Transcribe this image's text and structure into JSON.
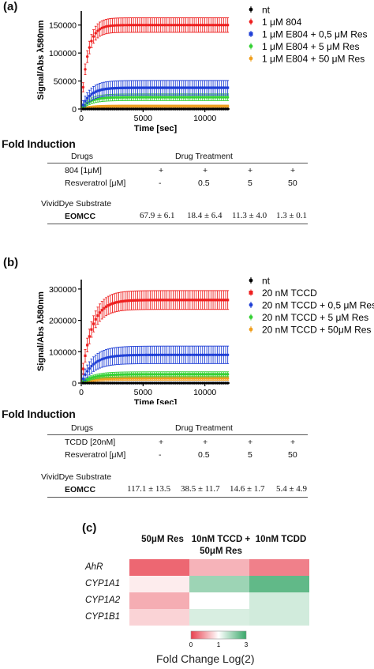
{
  "panel_a": {
    "label": "(a)",
    "chart_data": {
      "type": "line",
      "xlabel": "Time [sec]",
      "ylabel": "Signal/Abs λ580nm",
      "xlim": [
        0,
        12000
      ],
      "ylim": [
        0,
        175000
      ],
      "xticks": [
        "0",
        "5000",
        "10000"
      ],
      "yticks": [
        "0",
        "50000",
        "100000",
        "150000"
      ],
      "legend_position": "right",
      "series": [
        {
          "name": "nt",
          "color": "#000000",
          "marker": "dot",
          "plateau": 0,
          "t_half": 1,
          "err": 0
        },
        {
          "name": "1 μM 804",
          "color": "#ee2020",
          "marker": "dot",
          "plateau": 150000,
          "t_half": 500,
          "err": 13000
        },
        {
          "name": "1 μM E804 + 0,5 μM Res",
          "color": "#1f3fd6",
          "marker": "square",
          "plateau": 38000,
          "t_half": 700,
          "err": 13000
        },
        {
          "name": "1 μM E804 + 5 μM Res",
          "color": "#35d035",
          "marker": "dot",
          "plateau": 21000,
          "t_half": 700,
          "err": 6000
        },
        {
          "name": "1 μM E804 + 50 μM Res",
          "color": "#f0a020",
          "marker": "dot",
          "plateau": 5000,
          "t_half": 700,
          "err": 2000
        }
      ]
    },
    "fold_title": "Fold Induction",
    "table": {
      "h_drugs": "Drugs",
      "h_treatment": "Drug Treatment",
      "row1_label": "804 [1μM]",
      "row1": [
        "+",
        "+",
        "+",
        "+"
      ],
      "row2_label": "Resveratrol [μM]",
      "row2": [
        "-",
        "0.5",
        "5",
        "50"
      ],
      "substrate_label": "VividDye Substrate",
      "eomcc_label": "EOMCC",
      "eomcc": [
        "67.9 ± 6.1",
        "18.4 ± 6.4",
        "11.3 ± 4.0",
        "1.3 ± 0.1"
      ]
    }
  },
  "panel_b": {
    "label": "(b)",
    "chart_data": {
      "type": "line",
      "xlabel": "Time [sec]",
      "ylabel": "Signal/Abs λ580nm",
      "xlim": [
        0,
        12000
      ],
      "ylim": [
        0,
        330000
      ],
      "xticks": [
        "0",
        "5000",
        "10000"
      ],
      "yticks": [
        "0",
        "100000",
        "200000",
        "300000"
      ],
      "legend_position": "right",
      "series": [
        {
          "name": "nt",
          "color": "#000000",
          "marker": "dot",
          "plateau": 0,
          "t_half": 1,
          "err": 0
        },
        {
          "name": "20 nM TCCD",
          "color": "#ee2020",
          "marker": "square",
          "plateau": 265000,
          "t_half": 800,
          "err": 30000
        },
        {
          "name": "20 nM TCCD + 0,5 μM Res",
          "color": "#1f3fd6",
          "marker": "dot",
          "plateau": 90000,
          "t_half": 900,
          "err": 28000
        },
        {
          "name": "20 nM TCCD + 5 μM Res",
          "color": "#35d035",
          "marker": "dot",
          "plateau": 28000,
          "t_half": 900,
          "err": 8000
        },
        {
          "name": "20 nM TCCD + 50μM Res",
          "color": "#f0a020",
          "marker": "dot",
          "plateau": 15000,
          "t_half": 900,
          "err": 6000
        }
      ]
    },
    "fold_title": "Fold Induction",
    "table": {
      "h_drugs": "Drugs",
      "h_treatment": "Drug Treatment",
      "row1_label": "TCDD [20nM]",
      "row1": [
        "+",
        "+",
        "+",
        "+"
      ],
      "row2_label": "Resveratrol [μM]",
      "row2": [
        "-",
        "0.5",
        "5",
        "50"
      ],
      "substrate_label": "VividDye Substrate",
      "eomcc_label": "EOMCC",
      "eomcc": [
        "117.1 ± 13.5",
        "38.5 ± 11.7",
        "14.6 ± 1.7",
        "5.4 ± 4.9"
      ]
    }
  },
  "panel_c": {
    "label": "(c)",
    "chart_data": {
      "type": "heatmap",
      "columns": [
        "50μM Res",
        "10nM TCCD + 50μM Res",
        "10nM TCDD"
      ],
      "col_line1": [
        "50μM Res",
        "10nM TCCD +",
        "10nM TCDD"
      ],
      "col_line2": [
        "",
        "50μM Res",
        ""
      ],
      "rows": [
        "AhR",
        "CYP1A1",
        "CYP1A2",
        "CYP1B1"
      ],
      "values": [
        [
          -2.4,
          -1.2,
          -2.0
        ],
        [
          -0.3,
          1.5,
          2.4
        ],
        [
          -1.3,
          0.0,
          0.7
        ],
        [
          -0.7,
          0.6,
          0.7
        ]
      ],
      "scale_min": -3,
      "scale_max": 3,
      "colorbar_ticks": [
        "0",
        "1",
        "3"
      ],
      "colorbar_label": "Fold Change Log(2)",
      "low_color": "#e8414f",
      "mid_color": "#ffffff",
      "high_color": "#3aa86a"
    }
  }
}
